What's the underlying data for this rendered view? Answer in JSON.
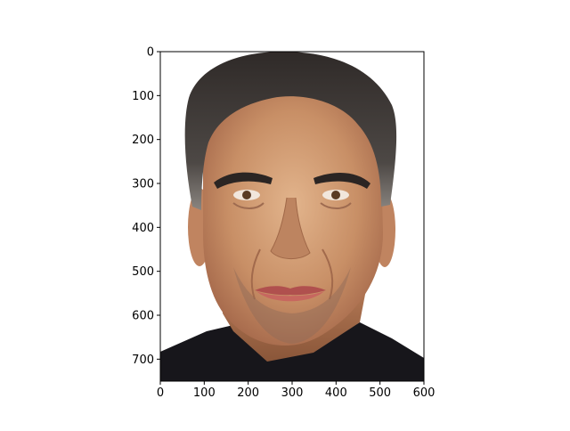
{
  "chart_data": {
    "type": "image",
    "title": "",
    "xlabel": "",
    "ylabel": "",
    "xlim": [
      0,
      600
    ],
    "ylim": [
      750,
      0
    ],
    "x_ticks": [
      0,
      100,
      200,
      300,
      400,
      500,
      600
    ],
    "y_ticks": [
      0,
      100,
      200,
      300,
      400,
      500,
      600,
      700
    ],
    "x_tick_labels": [
      "0",
      "100",
      "200",
      "300",
      "400",
      "500",
      "600"
    ],
    "y_tick_labels": [
      "0",
      "100",
      "200",
      "300",
      "400",
      "500",
      "600",
      "700"
    ],
    "grid": false,
    "image_subject": "portrait-photo"
  }
}
